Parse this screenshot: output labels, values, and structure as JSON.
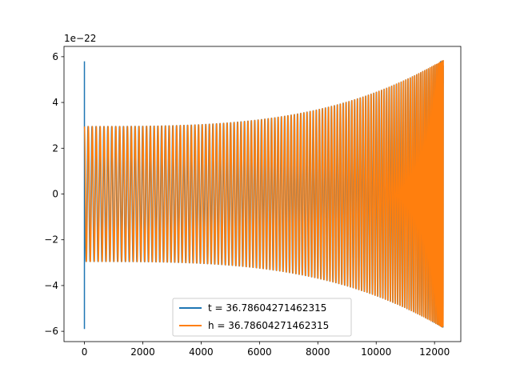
{
  "chart_data": {
    "type": "line",
    "title": "",
    "xlabel": "",
    "ylabel": "",
    "y_offset_label": "1e−22",
    "xlim": [
      -700,
      12900
    ],
    "ylim": [
      -6.45,
      6.45
    ],
    "x_ticks": [
      0,
      2000,
      4000,
      6000,
      8000,
      10000,
      12000
    ],
    "x_tick_labels": [
      "0",
      "2000",
      "4000",
      "6000",
      "8000",
      "10000",
      "12000"
    ],
    "y_ticks": [
      -6,
      -4,
      -2,
      0,
      2,
      4,
      6
    ],
    "y_tick_labels": [
      "−6",
      "−4",
      "−2",
      "0",
      "2",
      "4",
      "6"
    ],
    "grid": false,
    "legend_position": "bottom-center",
    "series": [
      {
        "name": "t = 36.78604271462315",
        "color": "#1f77b4",
        "x_start": 0,
        "x_end": 12300,
        "initial_spike": {
          "x": 0,
          "max": 5.8,
          "min": -5.9
        },
        "amplitude_start": 2.95,
        "amplitude_end": 5.85,
        "cycles": 120
      },
      {
        "name": "h = 36.78604271462315",
        "color": "#ff7f0e",
        "x_start": 0,
        "x_end": 12300,
        "amplitude_start": 2.95,
        "amplitude_end": 5.85,
        "cycles": 120
      }
    ]
  }
}
